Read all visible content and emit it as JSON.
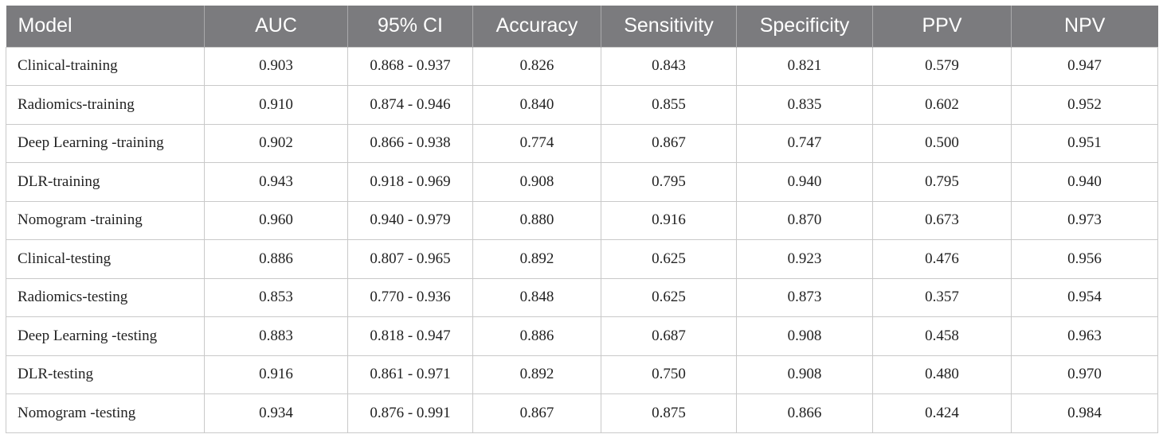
{
  "table": {
    "headers": [
      "Model",
      "AUC",
      "95% CI",
      "Accuracy",
      "Sensitivity",
      "Specificity",
      "PPV",
      "NPV"
    ],
    "rows": [
      [
        "Clinical-training",
        "0.903",
        "0.868 - 0.937",
        "0.826",
        "0.843",
        "0.821",
        "0.579",
        "0.947"
      ],
      [
        "Radiomics-training",
        "0.910",
        "0.874 - 0.946",
        "0.840",
        "0.855",
        "0.835",
        "0.602",
        "0.952"
      ],
      [
        "Deep Learning -training",
        "0.902",
        "0.866 - 0.938",
        "0.774",
        "0.867",
        "0.747",
        "0.500",
        "0.951"
      ],
      [
        "DLR-training",
        "0.943",
        "0.918 - 0.969",
        "0.908",
        "0.795",
        "0.940",
        "0.795",
        "0.940"
      ],
      [
        "Nomogram -training",
        "0.960",
        "0.940 - 0.979",
        "0.880",
        "0.916",
        "0.870",
        "0.673",
        "0.973"
      ],
      [
        "Clinical-testing",
        "0.886",
        "0.807 - 0.965",
        "0.892",
        "0.625",
        "0.923",
        "0.476",
        "0.956"
      ],
      [
        "Radiomics-testing",
        "0.853",
        "0.770 - 0.936",
        "0.848",
        "0.625",
        "0.873",
        "0.357",
        "0.954"
      ],
      [
        "Deep Learning -testing",
        "0.883",
        "0.818 - 0.947",
        "0.886",
        "0.687",
        "0.908",
        "0.458",
        "0.963"
      ],
      [
        "DLR-testing",
        "0.916",
        "0.861 - 0.971",
        "0.892",
        "0.750",
        "0.908",
        "0.480",
        "0.970"
      ],
      [
        "Nomogram -testing",
        "0.934",
        "0.876 - 0.991",
        "0.867",
        "0.875",
        "0.866",
        "0.424",
        "0.984"
      ]
    ]
  },
  "colors": {
    "header_background": "#7b7b7e",
    "header_text": "#ffffff",
    "cell_border": "#c9c9c9"
  }
}
